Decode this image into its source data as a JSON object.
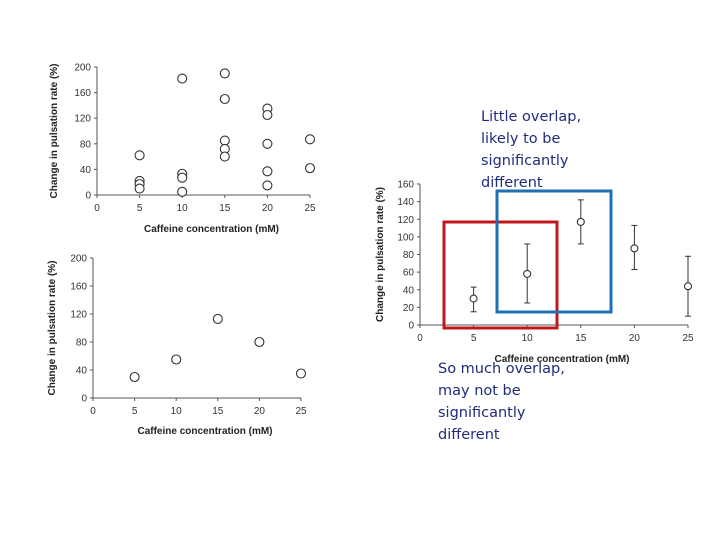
{
  "annotations": {
    "top_text": "Little overlap, likely to be significantly different",
    "bottom_text": "So much overlap, may not be significantly different",
    "top_box_color": "#1f6fb2",
    "bottom_box_color": "#c0161c",
    "text_color": "#1f2d7a"
  },
  "chart_data": [
    {
      "type": "scatter",
      "xlabel": "Caffeine concentration (mM)",
      "ylabel": "Change in pulsation rate (%)",
      "xlim": [
        0,
        25
      ],
      "ylim": [
        0,
        200
      ],
      "x_ticks": [
        0,
        5,
        10,
        15,
        20,
        25
      ],
      "y_ticks": [
        0,
        40,
        80,
        120,
        160,
        200
      ],
      "grid": false,
      "points": [
        {
          "x": 5,
          "y": 62
        },
        {
          "x": 5,
          "y": 22
        },
        {
          "x": 5,
          "y": 17
        },
        {
          "x": 5,
          "y": 10
        },
        {
          "x": 10,
          "y": 182
        },
        {
          "x": 10,
          "y": 33
        },
        {
          "x": 10,
          "y": 27
        },
        {
          "x": 10,
          "y": 5
        },
        {
          "x": 15,
          "y": 190
        },
        {
          "x": 15,
          "y": 150
        },
        {
          "x": 15,
          "y": 85
        },
        {
          "x": 15,
          "y": 72
        },
        {
          "x": 15,
          "y": 60
        },
        {
          "x": 20,
          "y": 135
        },
        {
          "x": 20,
          "y": 125
        },
        {
          "x": 20,
          "y": 80
        },
        {
          "x": 20,
          "y": 37
        },
        {
          "x": 20,
          "y": 15
        },
        {
          "x": 25,
          "y": 87
        },
        {
          "x": 25,
          "y": 42
        }
      ]
    },
    {
      "type": "scatter",
      "xlabel": "Caffeine concentration (mM)",
      "ylabel": "Change in pulsation rate (%)",
      "xlim": [
        0,
        25
      ],
      "ylim": [
        0,
        200
      ],
      "x_ticks": [
        0,
        5,
        10,
        15,
        20,
        25
      ],
      "y_ticks": [
        0,
        40,
        80,
        120,
        160,
        200
      ],
      "grid": false,
      "points": [
        {
          "x": 5,
          "y": 30
        },
        {
          "x": 10,
          "y": 55
        },
        {
          "x": 15,
          "y": 113
        },
        {
          "x": 20,
          "y": 80
        },
        {
          "x": 25,
          "y": 35
        }
      ]
    },
    {
      "type": "scatter",
      "xlabel": "Caffeine concentration (mM)",
      "ylabel": "Change in pulsation rate (%)",
      "xlim": [
        0,
        25
      ],
      "ylim": [
        0,
        160
      ],
      "x_ticks": [
        0,
        5,
        10,
        15,
        20,
        25
      ],
      "y_ticks": [
        0,
        20,
        40,
        60,
        80,
        100,
        120,
        140,
        160
      ],
      "grid": false,
      "error_bars": true,
      "points": [
        {
          "x": 5,
          "y": 30,
          "low": 15,
          "high": 43
        },
        {
          "x": 10,
          "y": 58,
          "low": 25,
          "high": 92
        },
        {
          "x": 15,
          "y": 117,
          "low": 92,
          "high": 142
        },
        {
          "x": 20,
          "y": 87,
          "low": 63,
          "high": 113
        },
        {
          "x": 25,
          "y": 44,
          "low": 10,
          "high": 78
        }
      ]
    }
  ]
}
